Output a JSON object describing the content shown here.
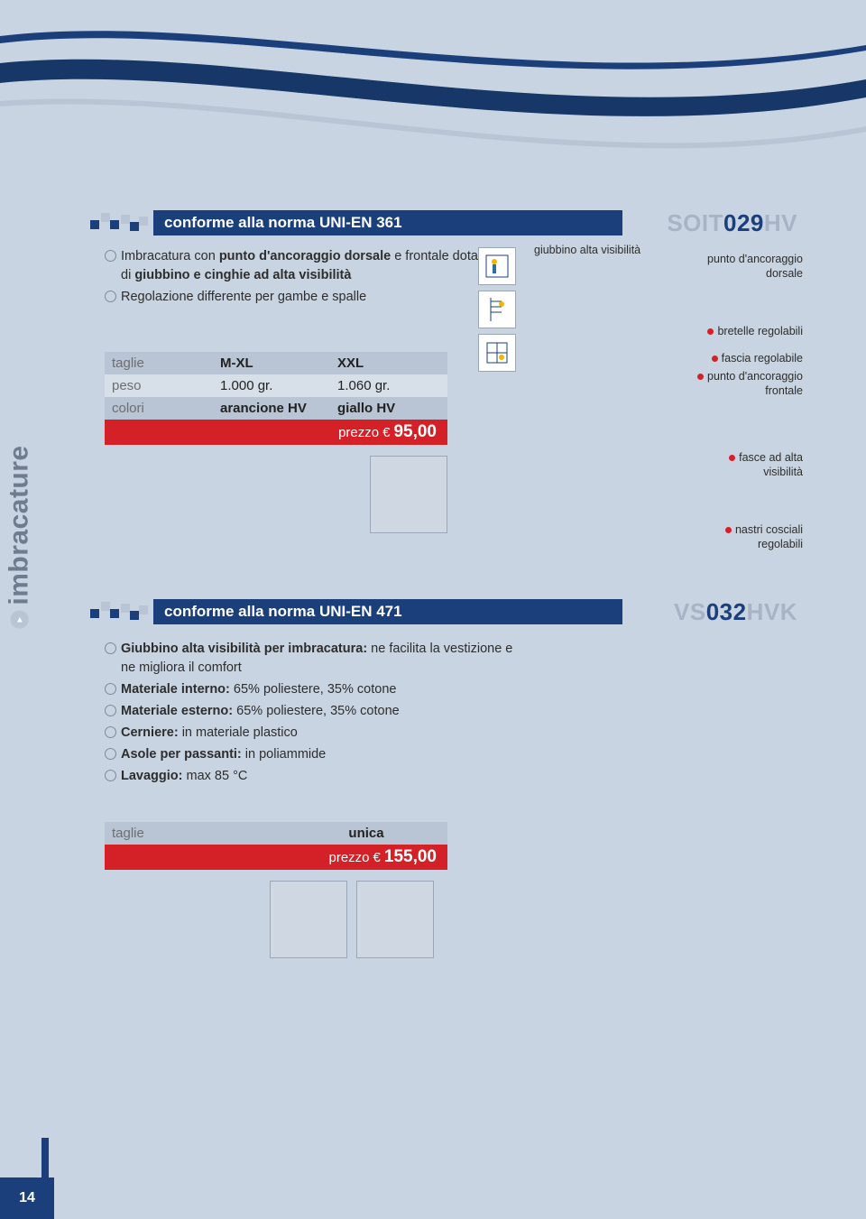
{
  "colors": {
    "page_bg": "#c8d4e2",
    "white": "#ffffff",
    "navy": "#1a3f7a",
    "navy_dark": "#163767",
    "tab_text": "#6d7d8f",
    "gray_text": "#6d6e71",
    "gray_light": "#b9c4d4",
    "row_alt": "#d7dfe8",
    "red": "#d42027",
    "header_text": "#ffffff",
    "code_gray": "#a6b4c6",
    "bullet_ring": "#7d8a9a",
    "callout_dot": "#d42027",
    "swatch_fill": "#cfd7e2",
    "swatch_border": "#9aa7b8"
  },
  "page_number": "14",
  "sidebar_label": "imbracature",
  "section1": {
    "title_prefix": "conforme alla norma ",
    "title_norm": "UNI-EN 361",
    "code_pre": "SOIT",
    "code_num": "029",
    "code_suf": "HV",
    "bullets": [
      {
        "bold1": "Imbracatura con ",
        "bold2": "punto d'ancoraggio dorsale",
        "rest": " e frontale dotata di ",
        "bold3": "giubbino e cinghie ad alta visibilità"
      },
      {
        "plain": "Regolazione differente per gambe e spalle"
      }
    ],
    "callouts": {
      "top1": "giubbino alta visibilità",
      "top2a": "punto d'ancoraggio",
      "top2b": "dorsale",
      "r1": "bretelle regolabili",
      "r2": "fascia regolabile",
      "r3a": "punto d'ancoraggio",
      "r3b": "frontale",
      "r4a": "fasce ad alta",
      "r4b": "visibilità",
      "r5a": "nastri cosciali",
      "r5b": "regolabili"
    },
    "table": {
      "rows": [
        {
          "label": "taglie",
          "v1": "M-XL",
          "v2": "XXL"
        },
        {
          "label": "peso",
          "v1": "1.000 gr.",
          "v2": "1.060 gr."
        },
        {
          "label": "colori",
          "v1": "arancione HV",
          "v2": "giallo HV"
        }
      ],
      "price_label": "prezzo",
      "price_currency": "€",
      "price_value": "95,00"
    }
  },
  "section2": {
    "title_prefix": "conforme alla norma ",
    "title_norm": "UNI-EN 471",
    "code_pre": "VS",
    "code_num": "032",
    "code_suf": "HVK",
    "bullets": [
      {
        "b": "Giubbino alta visibilità per imbracatura:",
        "r": " ne facilita la vestizione e ne migliora il comfort"
      },
      {
        "b": "Materiale interno:",
        "r": " 65% poliestere, 35% cotone"
      },
      {
        "b": "Materiale esterno:",
        "r": " 65% poliestere, 35% cotone"
      },
      {
        "b": "Cerniere:",
        "r": " in materiale plastico"
      },
      {
        "b": "Asole per passanti:",
        "r": " in poliammide"
      },
      {
        "b": "Lavaggio:",
        "r": " max 85 °C"
      }
    ],
    "table": {
      "label": "taglie",
      "value": "unica",
      "price_label": "prezzo",
      "price_currency": "€",
      "price_value": "155,00"
    }
  }
}
